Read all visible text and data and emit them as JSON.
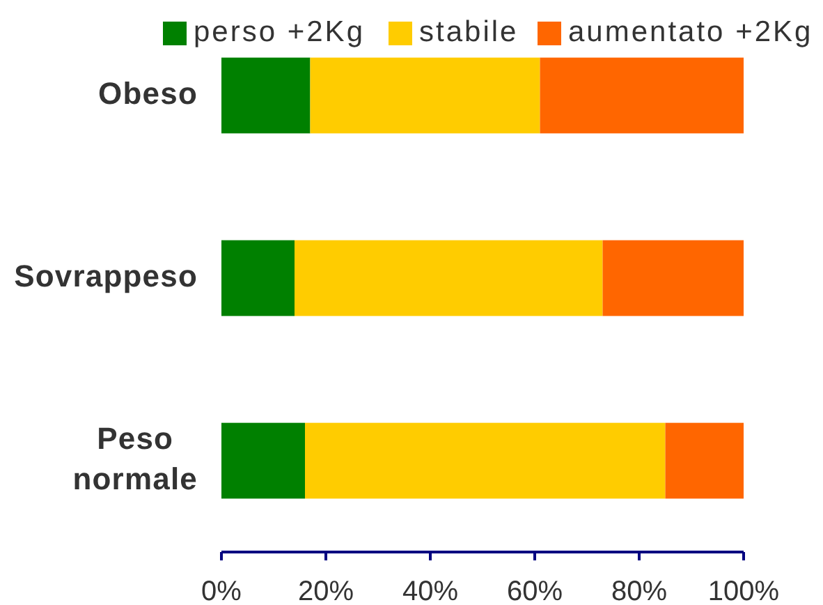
{
  "chart_data": {
    "type": "bar",
    "orientation": "horizontal",
    "stacked": true,
    "categories": [
      "Obeso",
      "Sovrappeso",
      "Peso normale"
    ],
    "series": [
      {
        "name": "perso +2Kg",
        "color": "#008000",
        "values": [
          17,
          14,
          16
        ]
      },
      {
        "name": "stabile",
        "color": "#ffcc00",
        "values": [
          44,
          59,
          69
        ]
      },
      {
        "name": "aumentato +2Kg",
        "color": "#ff6600",
        "values": [
          39,
          27,
          15
        ]
      }
    ],
    "xlim": [
      0,
      100
    ],
    "xticks": [
      {
        "value": 0,
        "label": "0%"
      },
      {
        "value": 20,
        "label": "20%"
      },
      {
        "value": 40,
        "label": "40%"
      },
      {
        "value": 60,
        "label": "60%"
      },
      {
        "value": 80,
        "label": "80%"
      },
      {
        "value": 100,
        "label": "100%"
      }
    ],
    "grid": false,
    "legend": "top"
  }
}
